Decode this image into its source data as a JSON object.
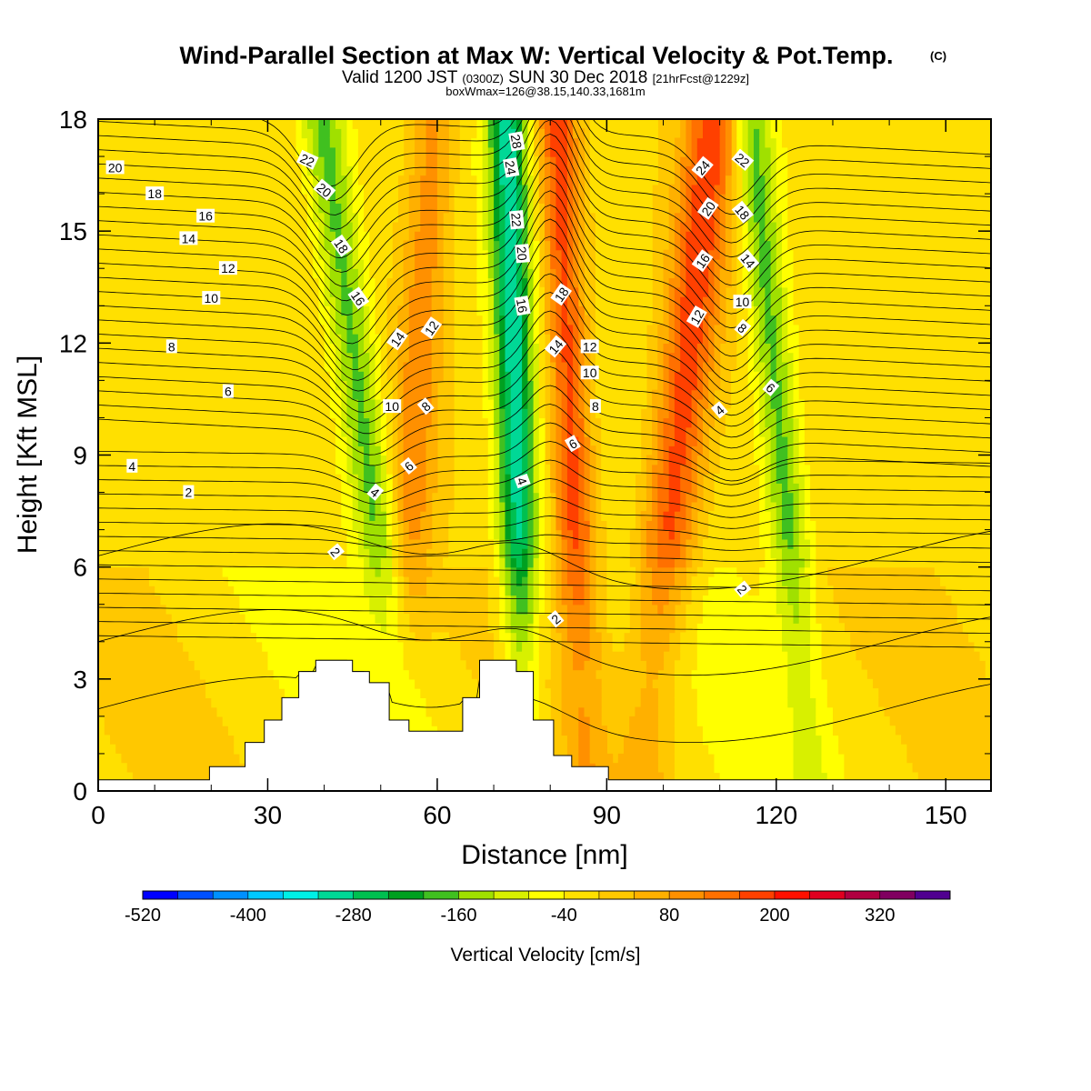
{
  "title": {
    "main": "Wind-Parallel Section at Max W: Vertical Velocity & Pot.Temp.",
    "copyright": "(C)",
    "valid_prefix": "Valid 1200 JST",
    "zulu": "(0300Z)",
    "valid_date": "SUN 30 Dec 2018",
    "forecast": "[21hrFcst@1229z]",
    "box": "boxWmax=126@38.15,140.33,1681m"
  },
  "chart_data": {
    "type": "heatmap",
    "xlabel": "Distance [nm]",
    "ylabel": "Height [Kft MSL]",
    "xlim": [
      0,
      158
    ],
    "ylim": [
      0,
      18
    ],
    "x_ticks": [
      0,
      30,
      60,
      90,
      120,
      150
    ],
    "y_ticks": [
      0,
      3,
      6,
      9,
      12,
      15,
      18
    ],
    "colorbar": {
      "label": "Vertical Velocity [cm/s]",
      "tick_labels": [
        "-520",
        "-400",
        "-280",
        "-160",
        "-40",
        "80",
        "200",
        "320"
      ],
      "colors": [
        "#0000ff",
        "#0050ff",
        "#0090ff",
        "#00c8ff",
        "#00f0e6",
        "#00d896",
        "#00c050",
        "#00a020",
        "#40c020",
        "#a0e000",
        "#d8f000",
        "#ffff00",
        "#ffe000",
        "#ffc800",
        "#ffb000",
        "#ff9000",
        "#ff7000",
        "#ff4000",
        "#ff1000",
        "#e00020",
        "#b00040",
        "#800060",
        "#500090"
      ]
    },
    "velocity_bands": [
      {
        "x_center": 45,
        "kind": "downdraft",
        "peak_cm_s": -160
      },
      {
        "x_center": 57,
        "kind": "updraft",
        "peak_cm_s": 120
      },
      {
        "x_center": 74,
        "kind": "downdraft",
        "peak_cm_s": -280
      },
      {
        "x_center": 83,
        "kind": "updraft",
        "peak_cm_s": 200
      },
      {
        "x_center": 106,
        "kind": "updraft",
        "peak_cm_s": 200
      },
      {
        "x_center": 118,
        "kind": "downdraft",
        "peak_cm_s": -160
      }
    ],
    "contour_labels": [
      {
        "text": "20",
        "x": 3,
        "y": 16.7,
        "angle": 0
      },
      {
        "text": "18",
        "x": 10,
        "y": 16.0,
        "angle": 0
      },
      {
        "text": "16",
        "x": 19,
        "y": 15.4,
        "angle": 0
      },
      {
        "text": "14",
        "x": 16,
        "y": 14.8,
        "angle": 0
      },
      {
        "text": "12",
        "x": 23,
        "y": 14.0,
        "angle": 0
      },
      {
        "text": "10",
        "x": 20,
        "y": 13.2,
        "angle": 0
      },
      {
        "text": "8",
        "x": 13,
        "y": 11.9,
        "angle": 0
      },
      {
        "text": "6",
        "x": 23,
        "y": 10.7,
        "angle": 0
      },
      {
        "text": "4",
        "x": 6,
        "y": 8.7,
        "angle": 0
      },
      {
        "text": "2",
        "x": 16,
        "y": 8.0,
        "angle": 0
      },
      {
        "text": "22",
        "x": 37,
        "y": 16.9,
        "angle": 25
      },
      {
        "text": "20",
        "x": 40,
        "y": 16.1,
        "angle": 40
      },
      {
        "text": "18",
        "x": 43,
        "y": 14.6,
        "angle": 55
      },
      {
        "text": "16",
        "x": 46,
        "y": 13.2,
        "angle": 55
      },
      {
        "text": "14",
        "x": 53,
        "y": 12.1,
        "angle": -55
      },
      {
        "text": "12",
        "x": 59,
        "y": 12.4,
        "angle": -55
      },
      {
        "text": "10",
        "x": 52,
        "y": 10.3,
        "angle": 0
      },
      {
        "text": "8",
        "x": 58,
        "y": 10.3,
        "angle": -40
      },
      {
        "text": "6",
        "x": 55,
        "y": 8.7,
        "angle": -40
      },
      {
        "text": "4",
        "x": 49,
        "y": 8.0,
        "angle": 40
      },
      {
        "text": "2",
        "x": 42,
        "y": 6.4,
        "angle": 50
      },
      {
        "text": "28",
        "x": 74,
        "y": 17.4,
        "angle": 80
      },
      {
        "text": "24",
        "x": 73,
        "y": 16.7,
        "angle": 80
      },
      {
        "text": "22",
        "x": 74,
        "y": 15.3,
        "angle": 85
      },
      {
        "text": "20",
        "x": 75,
        "y": 14.4,
        "angle": 85
      },
      {
        "text": "16",
        "x": 75,
        "y": 13.0,
        "angle": 80
      },
      {
        "text": "18",
        "x": 82,
        "y": 13.3,
        "angle": -55
      },
      {
        "text": "14",
        "x": 81,
        "y": 11.9,
        "angle": -50
      },
      {
        "text": "12",
        "x": 87,
        "y": 11.9,
        "angle": 0
      },
      {
        "text": "10",
        "x": 87,
        "y": 11.2,
        "angle": 0
      },
      {
        "text": "8",
        "x": 88,
        "y": 10.3,
        "angle": 0
      },
      {
        "text": "6",
        "x": 84,
        "y": 9.3,
        "angle": -30
      },
      {
        "text": "4",
        "x": 75,
        "y": 8.3,
        "angle": 70
      },
      {
        "text": "2",
        "x": 81,
        "y": 4.6,
        "angle": -40
      },
      {
        "text": "24",
        "x": 107,
        "y": 16.7,
        "angle": -50
      },
      {
        "text": "22",
        "x": 114,
        "y": 16.9,
        "angle": 40
      },
      {
        "text": "20",
        "x": 108,
        "y": 15.6,
        "angle": -55
      },
      {
        "text": "18",
        "x": 114,
        "y": 15.5,
        "angle": 50
      },
      {
        "text": "16",
        "x": 107,
        "y": 14.2,
        "angle": -55
      },
      {
        "text": "14",
        "x": 115,
        "y": 14.2,
        "angle": 50
      },
      {
        "text": "12",
        "x": 106,
        "y": 12.7,
        "angle": -60
      },
      {
        "text": "10",
        "x": 114,
        "y": 13.1,
        "angle": 0
      },
      {
        "text": "8",
        "x": 114,
        "y": 12.4,
        "angle": 40
      },
      {
        "text": "6",
        "x": 119,
        "y": 10.8,
        "angle": 40
      },
      {
        "text": "4",
        "x": 110,
        "y": 10.2,
        "angle": -40
      },
      {
        "text": "2",
        "x": 114,
        "y": 5.4,
        "angle": 50
      }
    ],
    "terrain": [
      [
        0,
        0.3
      ],
      [
        19.7,
        0.3
      ],
      [
        19.7,
        0.65
      ],
      [
        26,
        0.65
      ],
      [
        26,
        1.3
      ],
      [
        29.4,
        1.3
      ],
      [
        29.4,
        1.9
      ],
      [
        32.5,
        1.9
      ],
      [
        32.5,
        2.5
      ],
      [
        35.5,
        2.5
      ],
      [
        35.5,
        3.2
      ],
      [
        38.5,
        3.2
      ],
      [
        38.5,
        3.5
      ],
      [
        45,
        3.5
      ],
      [
        45,
        3.2
      ],
      [
        48,
        3.2
      ],
      [
        48,
        2.9
      ],
      [
        51.5,
        2.9
      ],
      [
        51.5,
        1.9
      ],
      [
        55,
        1.9
      ],
      [
        55,
        1.6
      ],
      [
        64.5,
        1.6
      ],
      [
        64.5,
        2.5
      ],
      [
        67.5,
        2.5
      ],
      [
        67.5,
        3.5
      ],
      [
        74,
        3.5
      ],
      [
        74,
        3.2
      ],
      [
        77,
        3.2
      ],
      [
        77,
        1.9
      ],
      [
        80.6,
        1.9
      ],
      [
        80.6,
        0.95
      ],
      [
        83.8,
        0.95
      ],
      [
        83.8,
        0.65
      ],
      [
        90.3,
        0.65
      ],
      [
        90.3,
        0.3
      ],
      [
        158,
        0.3
      ]
    ]
  }
}
